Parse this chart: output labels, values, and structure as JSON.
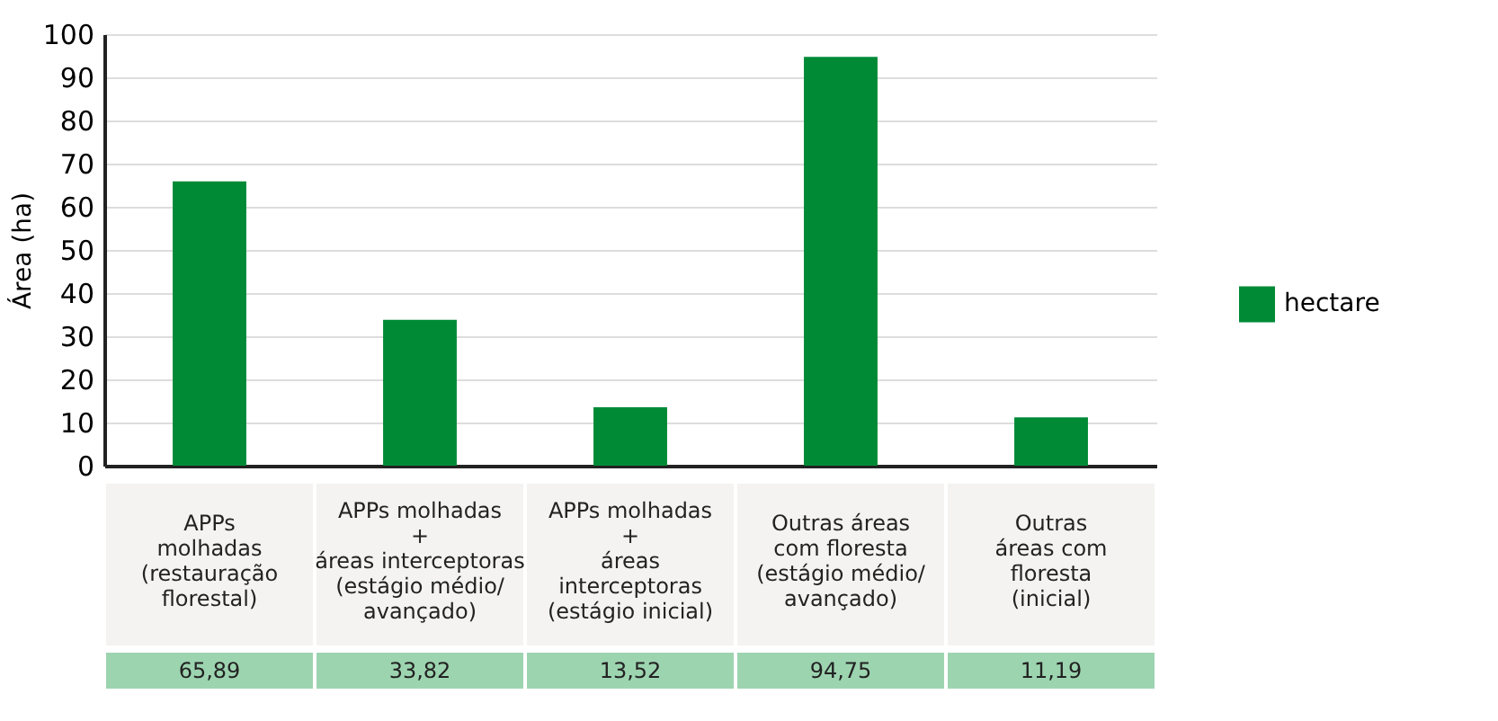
{
  "chart_data": {
    "type": "bar",
    "ylabel": "Área (ha)",
    "categories": [
      "APPs\nmolhadas\n(restauração\nflorestal)",
      "APPs molhadas\n+\náreas interceptoras\n(estágio médio/\navançado)",
      "APPs molhadas\n+\náreas\ninterceptoras\n(estágio inicial)",
      "Outras áreas\ncom floresta\n(estágio médio/\navançado)",
      "Outras\náreas com\nfloresta\n(inicial)"
    ],
    "series": [
      {
        "name": "hectare",
        "color": "#008a36",
        "values": [
          65.89,
          33.82,
          13.52,
          94.75,
          11.19
        ],
        "value_labels": [
          "65,89",
          "33,82",
          "13,52",
          "94,75",
          "11,19"
        ]
      }
    ],
    "ylim": [
      0,
      100
    ],
    "yticks": [
      0,
      10,
      20,
      30,
      40,
      50,
      60,
      70,
      80,
      90,
      100
    ],
    "grid": "y",
    "legend": "right"
  }
}
